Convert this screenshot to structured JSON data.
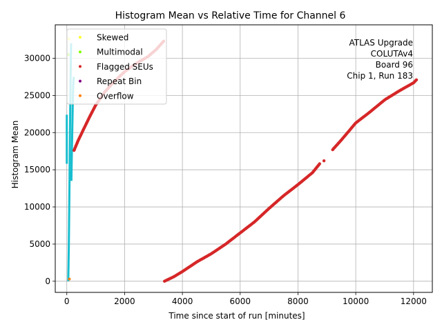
{
  "chart_data": {
    "type": "scatter",
    "title": "Histogram Mean vs Relative Time for Channel 6",
    "xlabel": "Time since start of run [minutes]",
    "ylabel": "Histogram Mean",
    "xlim": [
      -400,
      12650
    ],
    "ylim": [
      -1500,
      34500
    ],
    "x_ticks": [
      0,
      2000,
      4000,
      6000,
      8000,
      10000,
      12000
    ],
    "y_ticks": [
      0,
      5000,
      10000,
      15000,
      20000,
      25000,
      30000
    ],
    "grid": true,
    "legend_placement": "top-left",
    "annotation": [
      "ATLAS Upgrade",
      "COLUTAv4",
      "Board 96",
      "Chip 1, Run 183"
    ],
    "series": [
      {
        "name": "Skewed",
        "color": "#ffff33",
        "points": [
          [
            70,
            32600
          ]
        ]
      },
      {
        "name": "Multimodal",
        "color": "#80ff00",
        "points": [
          [
            60,
            30500
          ]
        ]
      },
      {
        "name": "Flagged SEUs",
        "color": "#d62728",
        "segments": [
          {
            "x": [
              250,
              400,
              600,
              800,
              1000,
              1300,
              1600,
              2000,
              2400,
              2800,
              3100,
              3350
            ],
            "y": [
              17600,
              19000,
              20600,
              22200,
              23700,
              25400,
              26700,
              28200,
              29300,
              30200,
              31200,
              32300
            ]
          },
          {
            "x": [
              3380,
              3700,
              4000,
              4500,
              5000,
              5500,
              6000,
              6500,
              7000,
              7500,
              8000,
              8500,
              8750
            ],
            "y": [
              0,
              600,
              1300,
              2600,
              3700,
              5000,
              6500,
              8000,
              9800,
              11500,
              13000,
              14600,
              15800
            ]
          },
          {
            "x": [
              8900
            ],
            "y": [
              16200
            ]
          },
          {
            "x": [
              9200,
              9500,
              10000,
              10500,
              11000,
              11500,
              12000,
              12100
            ],
            "y": [
              17700,
              19000,
              21300,
              22800,
              24400,
              25600,
              26700,
              27100
            ]
          }
        ]
      },
      {
        "name": "Repeat Bin",
        "color": "#800080",
        "points": []
      },
      {
        "name": "Overflow",
        "color": "#ff7f0e",
        "points": [
          [
            90,
            300
          ]
        ]
      }
    ],
    "unflagged": {
      "color": "#17becf",
      "segments": [
        {
          "x": [
            0,
            0,
            0
          ],
          "y": [
            15800,
            19000,
            22400
          ]
        },
        {
          "x": [
            50,
            60,
            70,
            80,
            90,
            100,
            110,
            120,
            130,
            140,
            150
          ],
          "y": [
            0,
            2000,
            5000,
            8500,
            12000,
            16000,
            20000,
            24000,
            27000,
            30000,
            32000
          ]
        },
        {
          "x": [
            160,
            170,
            180,
            190,
            200,
            210,
            220,
            230,
            240
          ],
          "y": [
            13500,
            16000,
            18500,
            20500,
            22500,
            24500,
            26000,
            27000,
            27500
          ]
        }
      ]
    }
  }
}
